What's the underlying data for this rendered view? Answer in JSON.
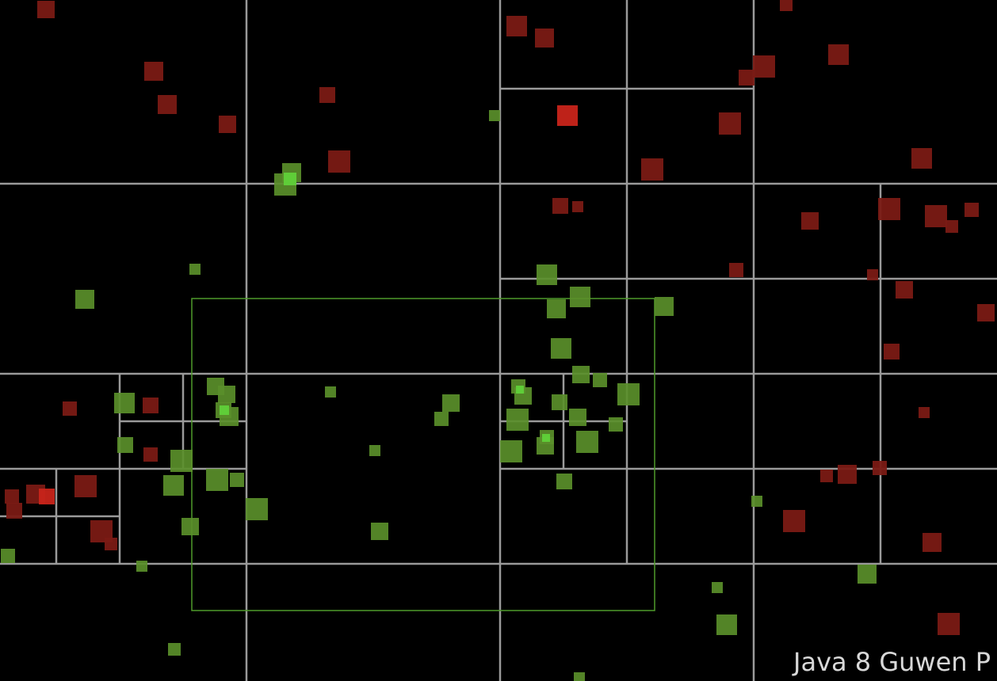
{
  "caption": "Java 8 Guwen P",
  "colors": {
    "background": "#000000",
    "grid_line": "#9a9a9a",
    "query_rect": "#4f9a2a",
    "point_in_query": "#5a8f2a",
    "point_in_query_highlight": "#5fd43a",
    "point_outside": "#7a1a14",
    "point_outside_highlight": "#c8241a"
  }
}
